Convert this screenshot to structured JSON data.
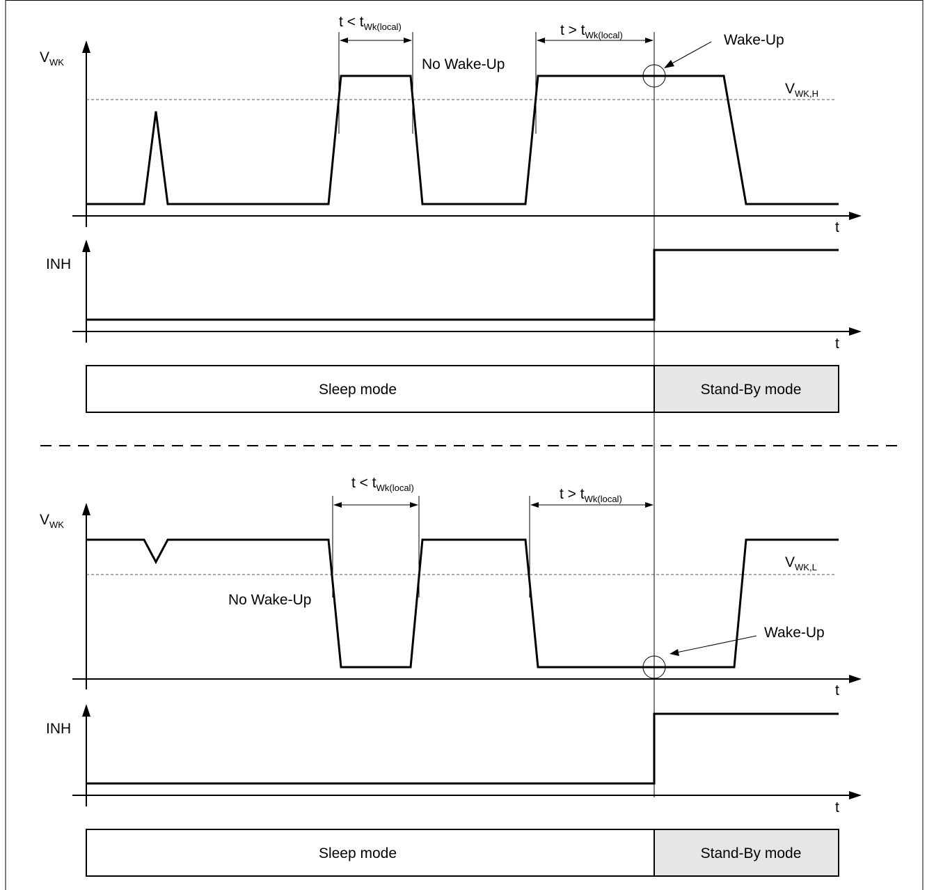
{
  "top": {
    "y_label": "V",
    "y_label_sub": "WK",
    "t_axis_label": "t",
    "threshold_label": "V",
    "threshold_label_sub": "WK,H",
    "interval_short": {
      "prefix": "t < t",
      "sub": "Wk(local)"
    },
    "interval_long": {
      "prefix": "t > t",
      "sub": "Wk(local)"
    },
    "no_wakeup_label": "No Wake-Up",
    "wakeup_label": "Wake-Up",
    "inh_label": "INH",
    "inh_t_axis_label": "t",
    "sleep_mode_label": "Sleep mode",
    "standby_mode_label": "Stand-By mode"
  },
  "bottom": {
    "y_label": "V",
    "y_label_sub": "WK",
    "t_axis_label": "t",
    "threshold_label": "V",
    "threshold_label_sub": "WK,L",
    "interval_short": {
      "prefix": "t < t",
      "sub": "Wk(local)"
    },
    "interval_long": {
      "prefix": "t > t",
      "sub": "Wk(local)"
    },
    "no_wakeup_label": "No Wake-Up",
    "wakeup_label": "Wake-Up",
    "inh_label": "INH",
    "inh_t_axis_label": "t",
    "sleep_mode_label": "Sleep mode",
    "standby_mode_label": "Stand-By mode"
  },
  "colors": {
    "line": "#000000",
    "threshold": "#555555",
    "standby_fill": "#e6e6e6",
    "sleep_fill": "#ffffff"
  }
}
